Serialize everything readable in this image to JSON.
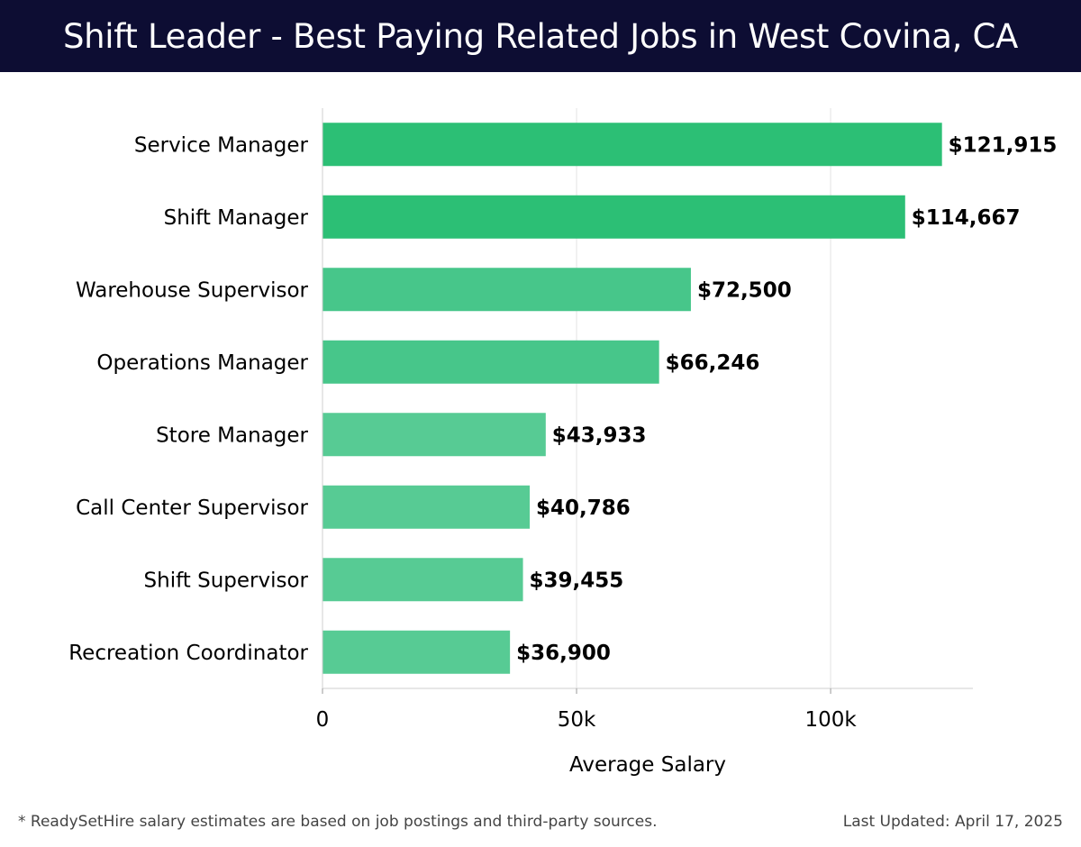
{
  "title": "Shift Leader - Best Paying Related Jobs in West Covina, CA",
  "footer": {
    "note": "* ReadySetHire salary estimates are based on job postings and third-party sources.",
    "updated": "Last Updated: April 17, 2025"
  },
  "colors": {
    "header_bg": "#0d0d33",
    "bar_dark": "#2cbf75",
    "bar_mid": "#47c68a",
    "bar_light": "#57cb94"
  },
  "chart_data": {
    "type": "bar",
    "orientation": "horizontal",
    "categories": [
      "Service Manager",
      "Shift Manager",
      "Warehouse Supervisor",
      "Operations Manager",
      "Store Manager",
      "Call Center Supervisor",
      "Shift Supervisor",
      "Recreation Coordinator"
    ],
    "values": [
      121915,
      114667,
      72500,
      66246,
      43933,
      40786,
      39455,
      36900
    ],
    "value_labels": [
      "$121,915",
      "$114,667",
      "$72,500",
      "$66,246",
      "$43,933",
      "$40,786",
      "$39,455",
      "$36,900"
    ],
    "xlabel": "Average Salary",
    "ylabel": "",
    "xlim": [
      0,
      128000
    ],
    "xticks": [
      0,
      50000,
      100000
    ],
    "xtick_labels": [
      "0",
      "50k",
      "100k"
    ],
    "grid": "vertical"
  }
}
